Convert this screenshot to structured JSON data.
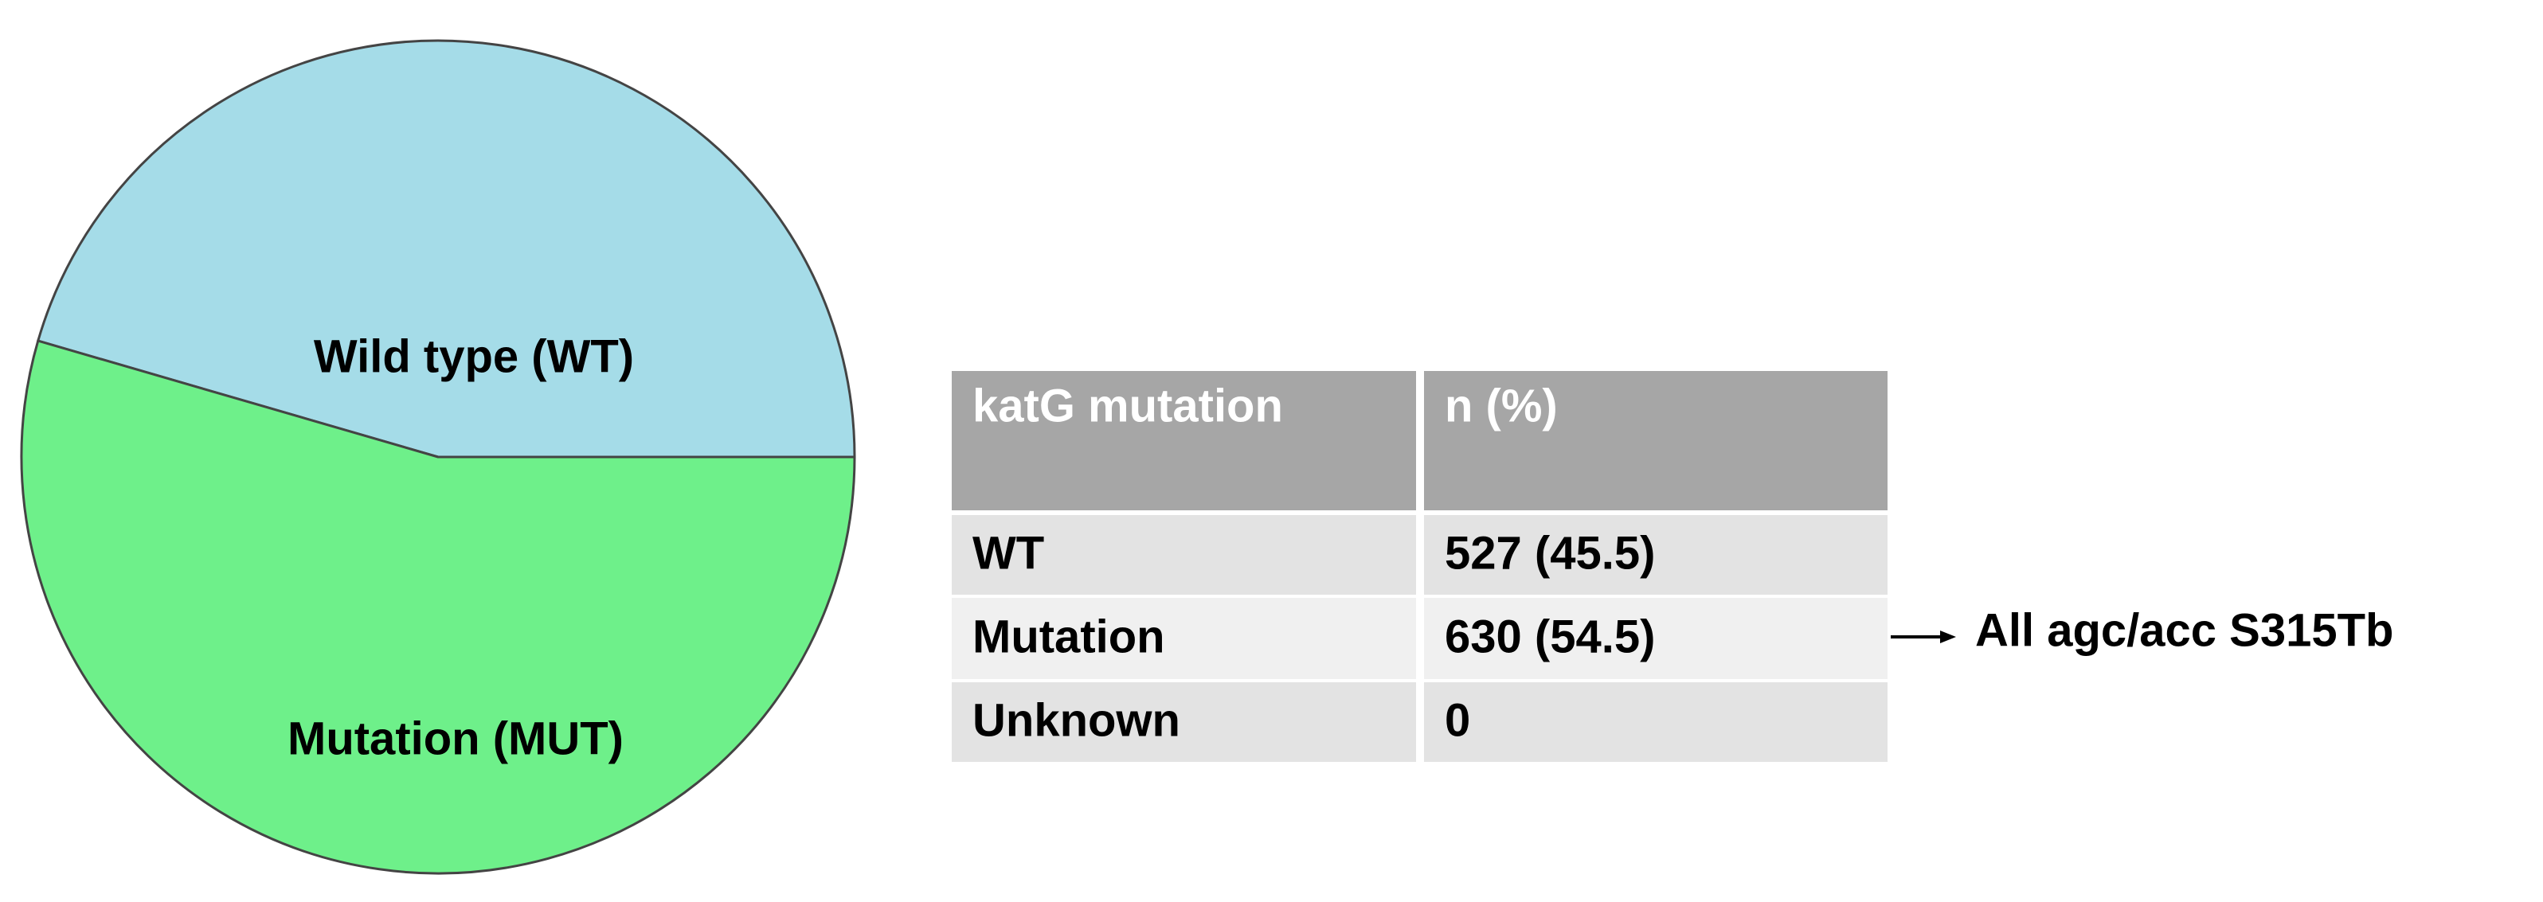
{
  "chart_data": {
    "type": "pie",
    "labels": [
      "Wild type (WT)",
      "Mutation (MUT)"
    ],
    "values": [
      45.5,
      54.5
    ],
    "colors": [
      "#a5dce8",
      "#6ef08a"
    ]
  },
  "table": {
    "header": [
      "katG mutation",
      "n (%)"
    ],
    "rows": [
      [
        "WT",
        "527 (45.5)"
      ],
      [
        "Mutation",
        "630 (54.5)"
      ],
      [
        "Unknown",
        "0"
      ]
    ]
  },
  "annotation": "All agc/acc S315Tb"
}
